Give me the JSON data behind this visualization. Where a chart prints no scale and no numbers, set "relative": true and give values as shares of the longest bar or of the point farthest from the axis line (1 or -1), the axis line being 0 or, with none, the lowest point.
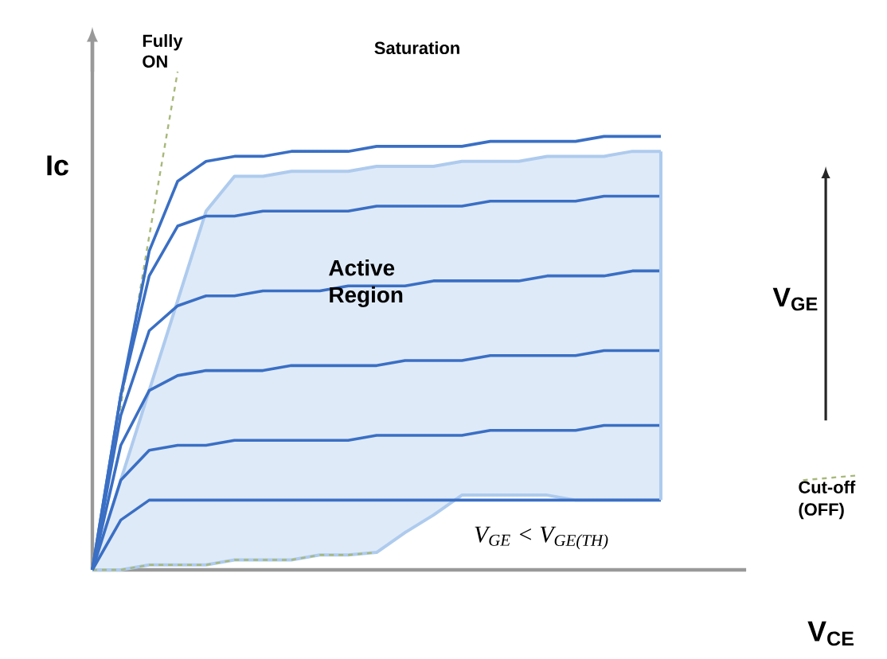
{
  "chart_data": {
    "type": "line",
    "relative": true,
    "xlabel": "V$_{CE}$",
    "ylabel": "Ic",
    "annotations": [
      "Fully ON",
      "Saturation",
      "Active Region",
      "V$_{GE}$",
      "Cut-off (OFF)",
      "V$_{GE}$ < V$_{GE(TH)}$"
    ],
    "categories": [
      null,
      null,
      null,
      null,
      null,
      null,
      null,
      null,
      null,
      null,
      null,
      null,
      null,
      null,
      null,
      null,
      null,
      null,
      null,
      null,
      null,
      null,
      null,
      null,
      null,
      null,
      null,
      null
    ],
    "series": [
      {
        "color": "#aecbee",
        "values": [
          0,
          0.18,
          0.36,
          0.54,
          0.72,
          0.79,
          0.79,
          0.8,
          0.8,
          0.8,
          0.81,
          0.81,
          0.81,
          0.82,
          0.82,
          0.82,
          0.83,
          0.83,
          0.83,
          0.84,
          0.84,
          null,
          null,
          null,
          null,
          null,
          null,
          null
        ],
        "upper": [
          0,
          0.18,
          0.36,
          0.54,
          0.72,
          0.79,
          0.79,
          0.8,
          0.8,
          0.8,
          0.81,
          0.81,
          0.81,
          0.82,
          0.82,
          0.82,
          0.83,
          0.83,
          0.83,
          0.84,
          0.84,
          null,
          null,
          null,
          null,
          null,
          null,
          null
        ],
        "lower": [
          0,
          0.0,
          0.01,
          0.01,
          0.01,
          0.02,
          0.02,
          0.02,
          0.03,
          0.03,
          0.035,
          0.075,
          0.11,
          0.15,
          0.15,
          0.15,
          0.15,
          0.14,
          0.14,
          0.14,
          0.14,
          null,
          null,
          null,
          null,
          null,
          null,
          null
        ]
      },
      {
        "color": "#aecbee",
        "values": [
          0,
          0.0,
          0.01,
          0.01,
          0.01,
          0.02,
          0.02,
          0.02,
          0.03,
          0.03,
          0.035,
          0.075,
          0.11,
          0.15,
          0.15,
          0.15,
          0.15,
          0.14,
          0.14,
          0.14,
          0.14,
          null,
          null,
          null,
          null,
          null,
          null,
          null
        ]
      },
      {
        "color": "#a7b97a",
        "line_style": "dashed",
        "values": [
          0,
          0.33,
          0.67,
          1,
          null,
          null,
          null,
          null,
          null,
          null,
          null,
          null,
          null,
          null,
          null,
          null,
          null,
          null,
          null,
          null,
          null,
          null,
          null,
          null,
          null,
          null,
          null,
          null
        ]
      },
      {
        "color": "#a7b97a",
        "line_style": "dashed",
        "values": [
          0,
          0.0,
          0.01,
          0.01,
          0.01,
          0.02,
          0.02,
          0.02,
          0.03,
          0.03,
          0.035,
          null,
          null,
          null,
          null,
          null,
          null,
          null,
          null,
          null,
          null,
          null,
          null,
          null,
          null,
          0.18,
          0.185,
          0.19
        ]
      },
      {
        "color": "#3a6fc4",
        "values": [
          0,
          0.35,
          0.64,
          0.78,
          0.82,
          0.83,
          0.83,
          0.84,
          0.84,
          0.84,
          0.85,
          0.85,
          0.85,
          0.85,
          0.86,
          0.86,
          0.86,
          0.86,
          0.87,
          0.87,
          0.87,
          null,
          null,
          null,
          null,
          null,
          null,
          null
        ]
      },
      {
        "color": "#3a6fc4",
        "values": [
          0,
          0.35,
          0.59,
          0.69,
          0.71,
          0.71,
          0.72,
          0.72,
          0.72,
          0.72,
          0.73,
          0.73,
          0.73,
          0.73,
          0.74,
          0.74,
          0.74,
          0.74,
          0.75,
          0.75,
          0.75,
          null,
          null,
          null,
          null,
          null,
          null,
          null
        ]
      },
      {
        "color": "#3a6fc4",
        "values": [
          0,
          0.31,
          0.48,
          0.53,
          0.55,
          0.55,
          0.56,
          0.56,
          0.56,
          0.57,
          0.57,
          0.57,
          0.58,
          0.58,
          0.58,
          0.58,
          0.59,
          0.59,
          0.59,
          0.6,
          0.6,
          null,
          null,
          null,
          null,
          null,
          null,
          null
        ]
      },
      {
        "color": "#3a6fc4",
        "values": [
          0,
          0.25,
          0.36,
          0.39,
          0.4,
          0.4,
          0.4,
          0.41,
          0.41,
          0.41,
          0.41,
          0.42,
          0.42,
          0.42,
          0.43,
          0.43,
          0.43,
          0.43,
          0.44,
          0.44,
          0.44,
          null,
          null,
          null,
          null,
          null,
          null,
          null
        ]
      },
      {
        "color": "#3a6fc4",
        "values": [
          0,
          0.18,
          0.24,
          0.25,
          0.25,
          0.26,
          0.26,
          0.26,
          0.26,
          0.26,
          0.27,
          0.27,
          0.27,
          0.27,
          0.28,
          0.28,
          0.28,
          0.28,
          0.29,
          0.29,
          0.29,
          null,
          null,
          null,
          null,
          null,
          null,
          null
        ]
      },
      {
        "color": "#3a6fc4",
        "values": [
          0,
          0.1,
          0.14,
          0.14,
          0.14,
          0.14,
          0.14,
          0.14,
          0.14,
          0.14,
          0.14,
          0.14,
          0.14,
          0.14,
          0.14,
          0.14,
          0.14,
          0.14,
          0.14,
          0.14,
          0.14,
          null,
          null,
          null,
          null,
          null,
          null,
          null
        ]
      }
    ]
  }
}
